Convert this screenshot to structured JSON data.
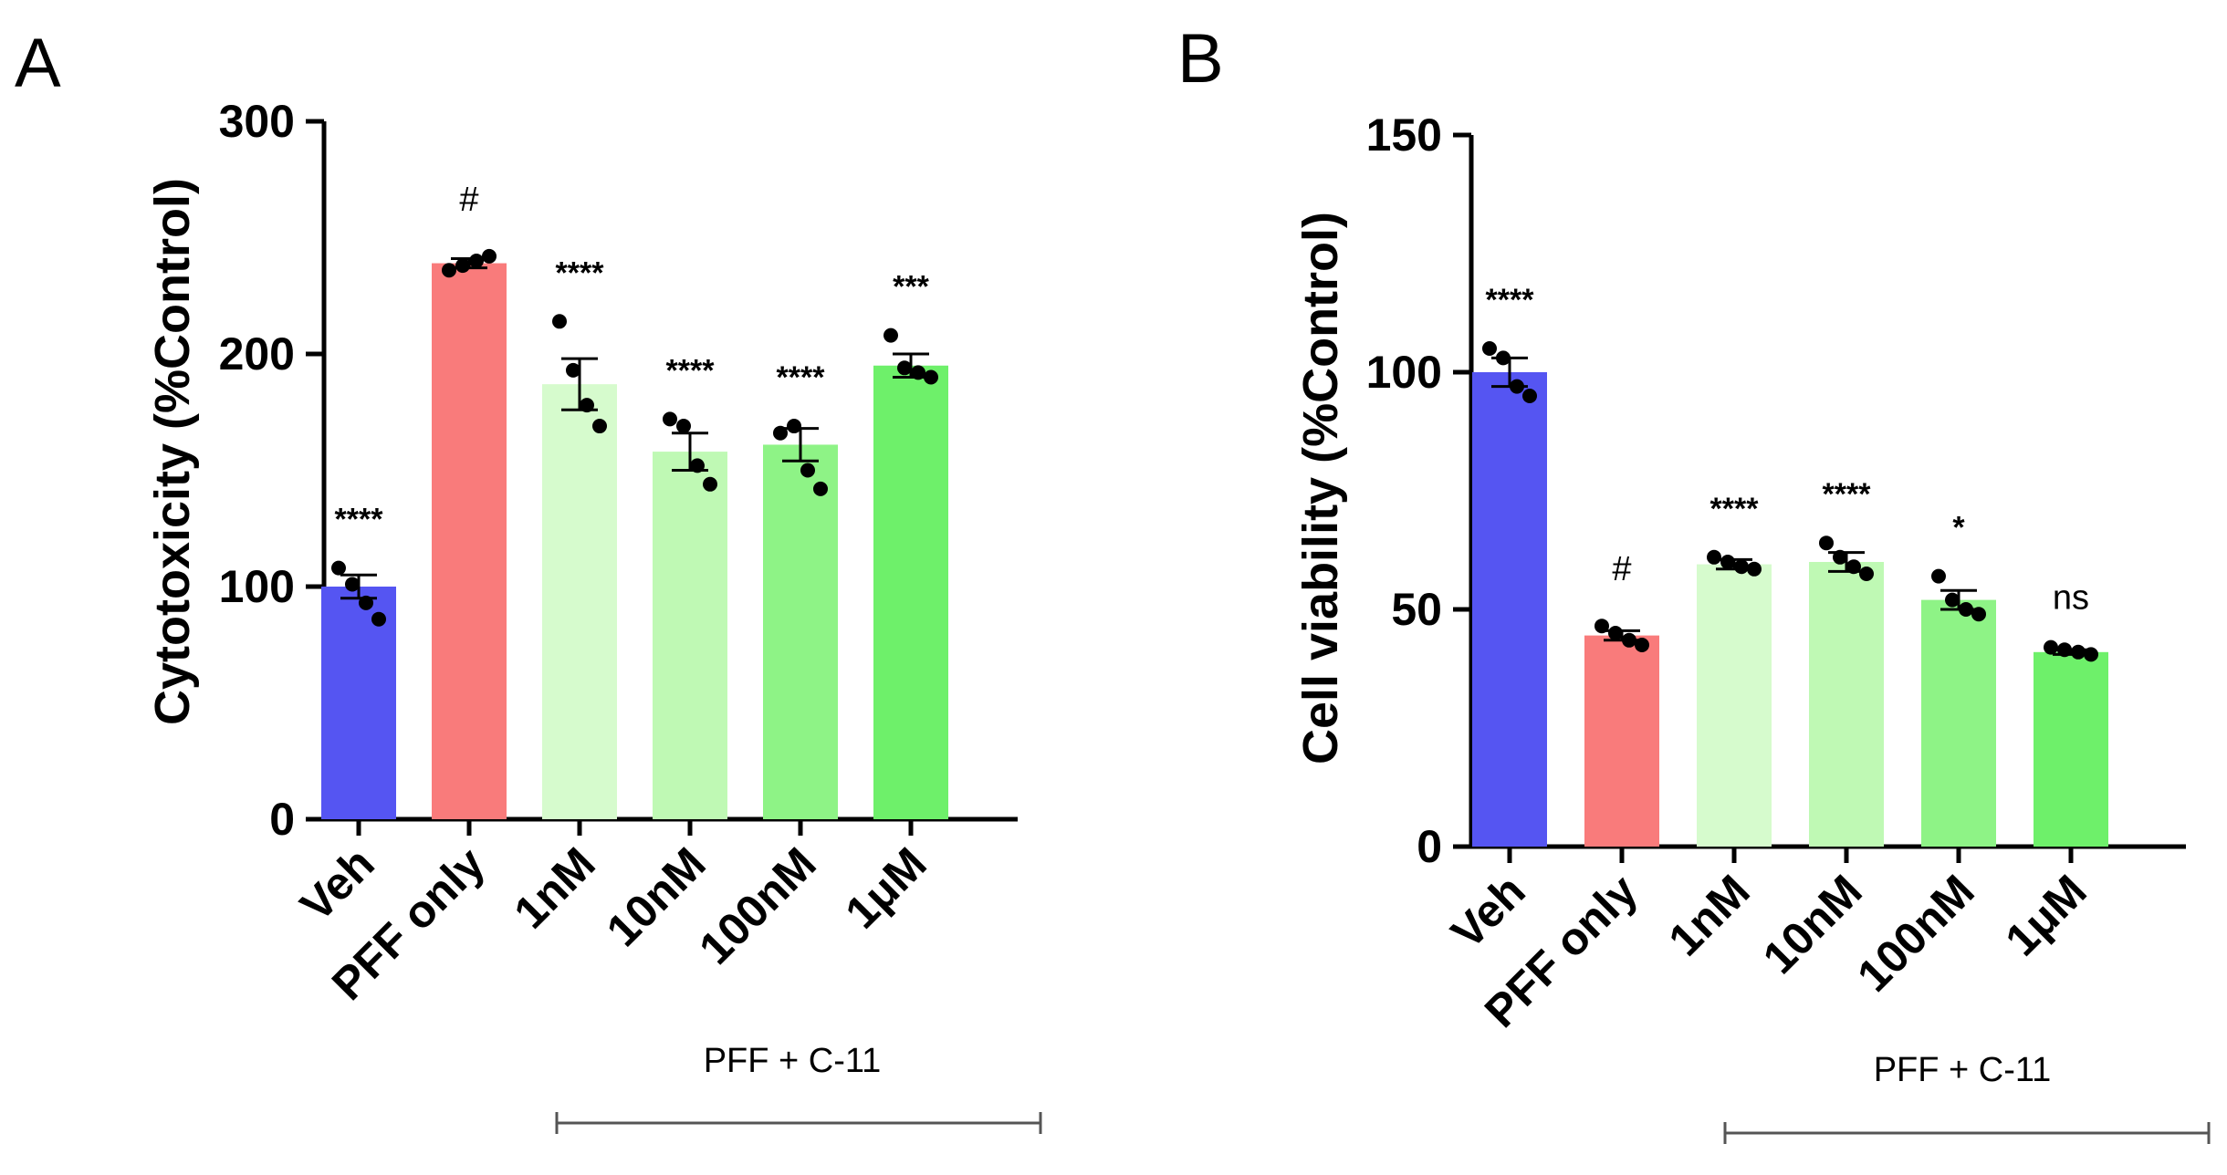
{
  "figure": {
    "panels": [
      "A",
      "B"
    ]
  },
  "chart_data": [
    {
      "panel": "A",
      "type": "bar",
      "title": "",
      "xlabel": "",
      "ylabel": "Cytotoxicity (%Control)",
      "ylim": [
        0,
        300
      ],
      "yticks": [
        0,
        100,
        200,
        300
      ],
      "categories": [
        "Veh",
        "PFF only",
        "1nM",
        "10nM",
        "100nM",
        "1μM"
      ],
      "values": [
        100,
        239,
        187,
        158,
        161,
        195
      ],
      "sem": [
        5,
        2,
        11,
        8,
        7,
        5
      ],
      "points": [
        [
          108,
          101,
          93,
          86
        ],
        [
          236,
          238,
          240,
          242
        ],
        [
          214,
          193,
          178,
          169
        ],
        [
          172,
          169,
          152,
          144
        ],
        [
          166,
          169,
          150,
          142
        ],
        [
          208,
          194,
          192,
          190
        ]
      ],
      "significance": [
        "****",
        "#",
        "****",
        "****",
        "****",
        "***"
      ],
      "colors": [
        "#5555f2",
        "#f97b7b",
        "#d6fbcd",
        "#bff9b4",
        "#8ef386",
        "#6ef06a"
      ],
      "group_label": "PFF + C-11",
      "grid": false,
      "legend": "none"
    },
    {
      "panel": "B",
      "type": "bar",
      "title": "",
      "xlabel": "",
      "ylabel": "Cell viability (%Control)",
      "ylim": [
        0,
        150
      ],
      "yticks": [
        0,
        50,
        100,
        150
      ],
      "categories": [
        "Veh",
        "PFF only",
        "1nM",
        "10nM",
        "100nM",
        "1μM"
      ],
      "values": [
        100,
        44.5,
        59.5,
        60,
        52,
        41
      ],
      "sem": [
        3,
        1,
        1,
        2,
        2,
        0.5
      ],
      "points": [
        [
          105,
          103,
          97,
          95
        ],
        [
          46.5,
          45,
          43.5,
          42.5
        ],
        [
          61,
          60,
          59,
          58.5
        ],
        [
          64,
          61,
          59,
          57.5
        ],
        [
          57,
          52,
          50,
          49
        ],
        [
          42,
          41.5,
          41,
          40.5
        ]
      ],
      "significance": [
        "****",
        "#",
        "****",
        "****",
        "*",
        "ns"
      ],
      "colors": [
        "#5555f2",
        "#f97b7b",
        "#d6fbcd",
        "#bff9b4",
        "#8ef386",
        "#6ef06a"
      ],
      "group_label": "PFF + C-11",
      "grid": false,
      "legend": "none"
    }
  ]
}
